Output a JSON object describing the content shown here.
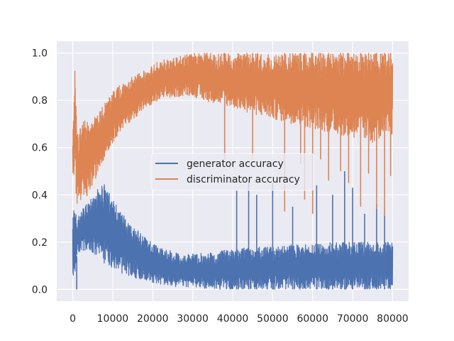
{
  "chart_data": {
    "type": "line",
    "title": "",
    "xlabel": "",
    "ylabel": "",
    "xlim": [
      -4000,
      84000
    ],
    "ylim": [
      -0.05,
      1.05
    ],
    "grid": true,
    "legend_position": "center",
    "x_ticks": [
      0,
      10000,
      20000,
      30000,
      40000,
      50000,
      60000,
      70000,
      80000
    ],
    "x_tick_labels": [
      "0",
      "10000",
      "20000",
      "30000",
      "40000",
      "50000",
      "60000",
      "70000",
      "80000"
    ],
    "y_ticks": [
      0.0,
      0.2,
      0.4,
      0.6,
      0.8,
      1.0
    ],
    "y_tick_labels": [
      "0.0",
      "0.2",
      "0.4",
      "0.6",
      "0.8",
      "1.0"
    ],
    "colors": {
      "background": "#eaeaf2",
      "grid": "#ffffff",
      "generator": "#4c72b0",
      "discriminator": "#dd8452"
    },
    "series": [
      {
        "name": "generator accuracy",
        "color": "#4c72b0",
        "x": [
          0,
          500,
          1000,
          2000,
          3000,
          4000,
          5000,
          6000,
          7000,
          8000,
          10000,
          12000,
          15000,
          18000,
          20000,
          22000,
          25000,
          28000,
          30000,
          35000,
          40000,
          45000,
          50000,
          55000,
          60000,
          65000,
          70000,
          75000,
          80000
        ],
        "upper": [
          0.38,
          0.35,
          0.3,
          0.33,
          0.35,
          0.38,
          0.4,
          0.42,
          0.44,
          0.45,
          0.38,
          0.33,
          0.27,
          0.22,
          0.2,
          0.18,
          0.16,
          0.15,
          0.15,
          0.16,
          0.17,
          0.18,
          0.18,
          0.19,
          0.19,
          0.2,
          0.2,
          0.2,
          0.2
        ],
        "lower": [
          0.0,
          0.05,
          0.14,
          0.16,
          0.16,
          0.15,
          0.14,
          0.13,
          0.12,
          0.11,
          0.09,
          0.07,
          0.05,
          0.04,
          0.03,
          0.02,
          0.01,
          0.01,
          0.01,
          0.0,
          0.0,
          0.0,
          0.0,
          0.0,
          0.0,
          0.0,
          0.0,
          0.0,
          0.0
        ],
        "spikes": [
          {
            "x": 1000,
            "y": 0.0
          },
          {
            "x": 41000,
            "y": 0.42
          },
          {
            "x": 44000,
            "y": 0.46
          },
          {
            "x": 46000,
            "y": 0.4
          },
          {
            "x": 50000,
            "y": 0.45
          },
          {
            "x": 55000,
            "y": 0.35
          },
          {
            "x": 61000,
            "y": 0.44
          },
          {
            "x": 65000,
            "y": 0.4
          },
          {
            "x": 68000,
            "y": 0.5
          },
          {
            "x": 70000,
            "y": 0.43
          },
          {
            "x": 73000,
            "y": 0.32
          },
          {
            "x": 76000,
            "y": 0.36
          },
          {
            "x": 78000,
            "y": 0.34
          }
        ]
      },
      {
        "name": "discriminator accuracy",
        "color": "#dd8452",
        "x": [
          0,
          500,
          1000,
          2000,
          3000,
          4000,
          5000,
          6000,
          7000,
          8000,
          10000,
          12000,
          15000,
          18000,
          20000,
          22000,
          25000,
          28000,
          30000,
          32000,
          35000,
          40000,
          45000,
          50000,
          55000,
          60000,
          65000,
          70000,
          75000,
          80000
        ],
        "upper": [
          0.62,
          1.0,
          0.66,
          0.7,
          0.72,
          0.7,
          0.73,
          0.74,
          0.76,
          0.79,
          0.84,
          0.87,
          0.9,
          0.93,
          0.95,
          0.97,
          0.98,
          0.99,
          1.0,
          1.0,
          1.0,
          1.0,
          1.0,
          1.0,
          1.0,
          1.0,
          1.0,
          1.0,
          1.0,
          1.0
        ],
        "lower": [
          0.4,
          0.5,
          0.36,
          0.36,
          0.37,
          0.4,
          0.44,
          0.48,
          0.52,
          0.56,
          0.62,
          0.67,
          0.72,
          0.76,
          0.78,
          0.8,
          0.81,
          0.82,
          0.82,
          0.8,
          0.79,
          0.77,
          0.74,
          0.72,
          0.7,
          0.68,
          0.66,
          0.64,
          0.62,
          0.65
        ],
        "dips": [
          {
            "x": 38000,
            "y": 0.55
          },
          {
            "x": 45000,
            "y": 0.55
          },
          {
            "x": 53000,
            "y": 0.33
          },
          {
            "x": 57000,
            "y": 0.53
          },
          {
            "x": 58000,
            "y": 0.38
          },
          {
            "x": 60000,
            "y": 0.32
          },
          {
            "x": 62000,
            "y": 0.55
          },
          {
            "x": 64000,
            "y": 0.46
          },
          {
            "x": 67000,
            "y": 0.5
          },
          {
            "x": 69000,
            "y": 0.45
          },
          {
            "x": 72000,
            "y": 0.35
          },
          {
            "x": 74000,
            "y": 0.49
          },
          {
            "x": 76000,
            "y": 0.34
          },
          {
            "x": 78000,
            "y": 0.31
          },
          {
            "x": 79500,
            "y": 0.48
          }
        ]
      }
    ]
  }
}
